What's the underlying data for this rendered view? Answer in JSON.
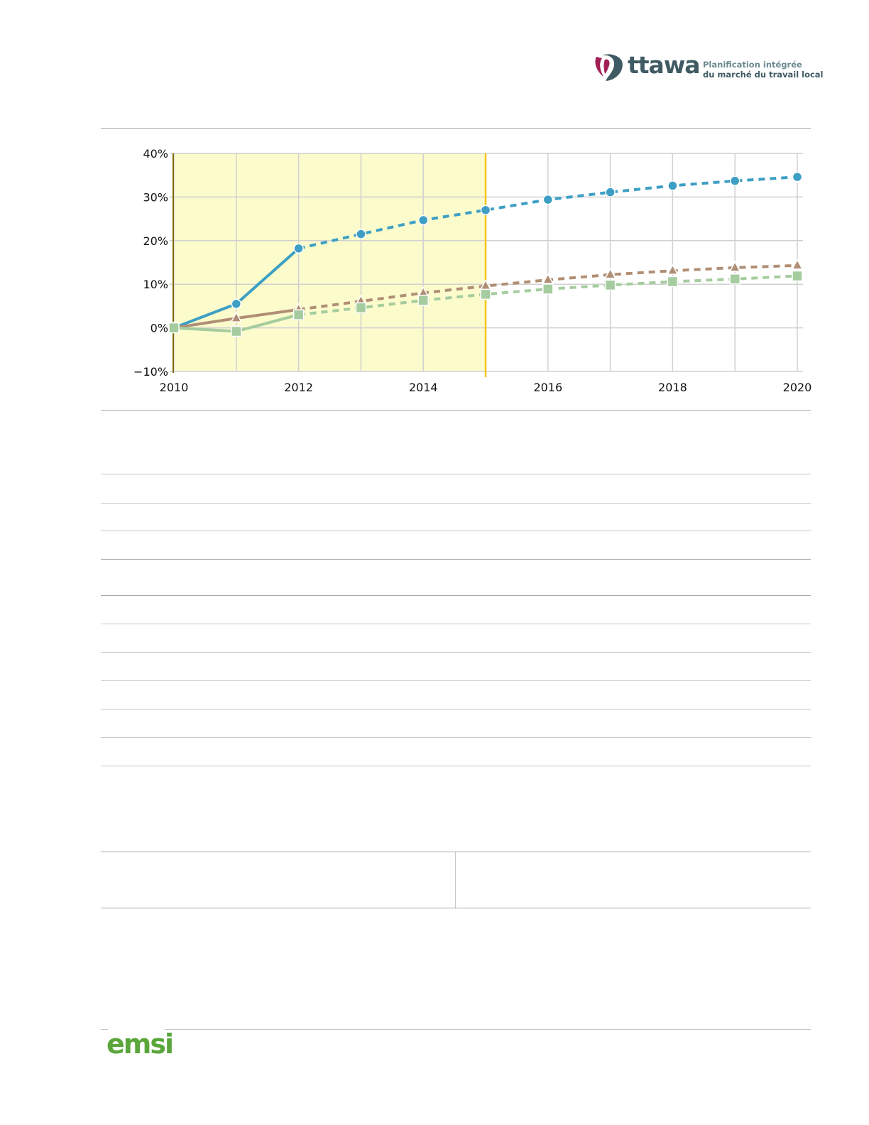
{
  "header": {
    "logo_word": "ttawa",
    "logo_line1": "Planification intégrée",
    "logo_line2": "du marché du travail local"
  },
  "footer": {
    "brand": "emsi"
  },
  "colors": {
    "series_blue": "#3d9fc4",
    "series_brown": "#b08e74",
    "series_green": "#a5cc9e",
    "history_band": "#fbfbcc",
    "forecast_divider": "#f5c518",
    "logo_flower": "#a02056"
  },
  "chart_data": {
    "type": "line",
    "x": [
      2010,
      2011,
      2012,
      2013,
      2014,
      2015,
      2016,
      2017,
      2018,
      2019,
      2020
    ],
    "xlim": [
      2010,
      2020
    ],
    "ylim": [
      -10,
      40
    ],
    "xticks": [
      "2010",
      "2012",
      "2014",
      "2016",
      "2018",
      "2020"
    ],
    "yticks": [
      "40%",
      "30%",
      "20%",
      "10%",
      "0%",
      "−10%"
    ],
    "ytick_values": [
      40,
      30,
      20,
      10,
      0,
      -10
    ],
    "xtick_values": [
      2010,
      2012,
      2014,
      2016,
      2018,
      2020
    ],
    "historical_through": 2012,
    "shaded_until": 2015,
    "grid": true,
    "series": [
      {
        "marker": "circle",
        "color": "#3d9fc4",
        "values": [
          0,
          5.5,
          18.2,
          21.5,
          24.7,
          27.0,
          29.4,
          31.1,
          32.6,
          33.7,
          34.6
        ]
      },
      {
        "marker": "triangle",
        "color": "#b08e74",
        "values": [
          0,
          2.2,
          4.2,
          6.1,
          8.0,
          9.6,
          11.0,
          12.2,
          13.1,
          13.8,
          14.3
        ]
      },
      {
        "marker": "square",
        "color": "#a5cc9e",
        "values": [
          0,
          -0.8,
          3.0,
          4.6,
          6.3,
          7.7,
          8.9,
          9.8,
          10.6,
          11.2,
          11.9
        ]
      }
    ]
  }
}
